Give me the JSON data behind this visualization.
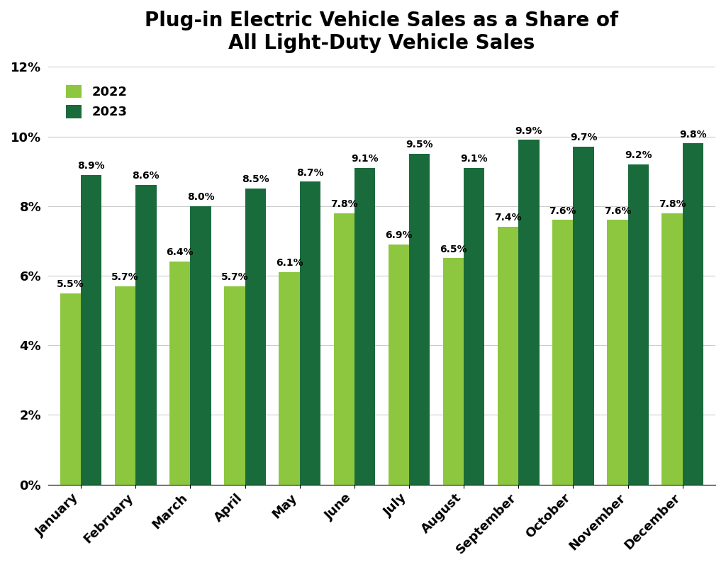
{
  "title": "Plug-in Electric Vehicle Sales as a Share of\nAll Light-Duty Vehicle Sales",
  "months": [
    "January",
    "February",
    "March",
    "April",
    "May",
    "June",
    "July",
    "August",
    "September",
    "October",
    "November",
    "December"
  ],
  "values_2022": [
    5.5,
    5.7,
    6.4,
    5.7,
    6.1,
    7.8,
    6.9,
    6.5,
    7.4,
    7.6,
    7.6,
    7.8
  ],
  "values_2023": [
    8.9,
    8.6,
    8.0,
    8.5,
    8.7,
    9.1,
    9.5,
    9.1,
    9.9,
    9.7,
    9.2,
    9.8
  ],
  "color_2022": "#8DC63F",
  "color_2023": "#1A6B3C",
  "ylim": [
    0,
    12
  ],
  "yticks": [
    0,
    2,
    4,
    6,
    8,
    10,
    12
  ],
  "ytick_labels": [
    "0%",
    "2%",
    "4%",
    "6%",
    "8%",
    "10%",
    "12%"
  ],
  "legend_labels": [
    "2022",
    "2023"
  ],
  "bar_width": 0.38,
  "title_fontsize": 20,
  "label_fontsize": 11,
  "tick_fontsize": 13,
  "legend_fontsize": 13,
  "annotation_fontsize": 10,
  "background_color": "#ffffff"
}
